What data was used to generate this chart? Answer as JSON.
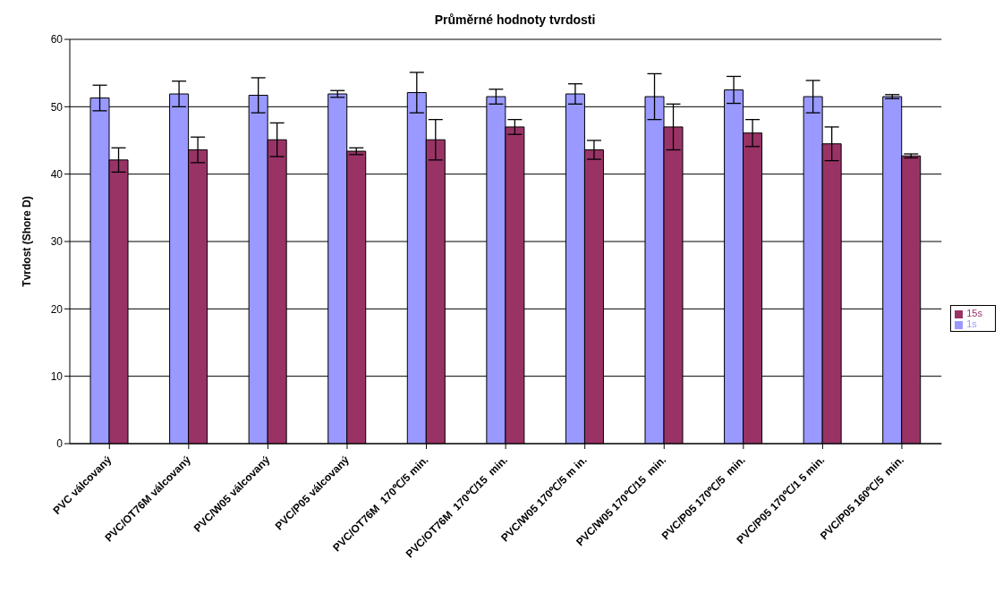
{
  "chart_data": {
    "type": "bar",
    "title": "Průměrné hodnoty tvrdosti",
    "ylabel": "Tvrdost (Shore D)",
    "categories": [
      "PVC válcovaný",
      "PVC/OT76M válcovaný",
      "PVC/W05 válcovaný",
      "PVC/P05 válcovaný",
      "PVC/OT76M  170℃/5 min.",
      "PVC/OT76M  170℃/15  min.",
      "PVC/W05 170℃/5 m in.",
      "PVC/W05 170℃/15  min.",
      "PVC/P05 170℃/5  min.",
      "PVC/P05 170℃/1 5 min.",
      "PVC/P05 160℃/5  min."
    ],
    "series": [
      {
        "name": "1s",
        "color": "#9999ff",
        "values": [
          51.3,
          51.9,
          51.7,
          51.9,
          52.1,
          51.5,
          51.9,
          51.5,
          52.5,
          51.5,
          51.5
        ],
        "errors": [
          1.9,
          1.9,
          2.6,
          0.5,
          3.0,
          1.1,
          1.5,
          3.4,
          2.0,
          2.4,
          0.3
        ]
      },
      {
        "name": "15s",
        "color": "#993366",
        "values": [
          42.1,
          43.6,
          45.1,
          43.4,
          45.1,
          47.0,
          43.6,
          47.0,
          46.1,
          44.5,
          42.7
        ],
        "errors": [
          1.8,
          1.9,
          2.5,
          0.5,
          3.0,
          1.1,
          1.4,
          3.4,
          2.0,
          2.5,
          0.3
        ]
      }
    ],
    "ylim": [
      0,
      60
    ],
    "yticks": [
      0,
      10,
      20,
      30,
      40,
      50,
      60
    ],
    "grid": "y",
    "legend": "right"
  }
}
